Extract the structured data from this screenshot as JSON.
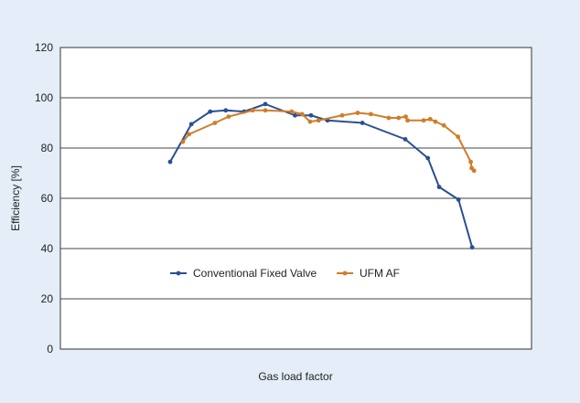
{
  "chart_data": {
    "type": "line",
    "title": "",
    "xlabel": "Gas load factor",
    "ylabel": "Efficiency [%]",
    "xlim": [
      0,
      1
    ],
    "ylim": [
      0,
      120
    ],
    "yticks": [
      0,
      20,
      40,
      60,
      80,
      100,
      120
    ],
    "grid": "horizontal",
    "legend_placement": "inside-left-lower",
    "series": [
      {
        "name": "Conventional Fixed Valve",
        "color": "#2a4f96",
        "x": [
          0.233,
          0.278,
          0.318,
          0.351,
          0.39,
          0.435,
          0.498,
          0.532,
          0.567,
          0.641,
          0.732,
          0.78,
          0.804,
          0.845,
          0.874
        ],
        "y": [
          74.5,
          89.5,
          94.5,
          95.0,
          94.5,
          97.5,
          93.0,
          93.0,
          91.0,
          90.0,
          83.5,
          76.0,
          64.5,
          59.5,
          40.5
        ]
      },
      {
        "name": "UFM AF",
        "color": "#d07d28",
        "x": [
          0.26,
          0.273,
          0.328,
          0.357,
          0.408,
          0.435,
          0.491,
          0.513,
          0.53,
          0.548,
          0.598,
          0.631,
          0.659,
          0.697,
          0.718,
          0.733,
          0.737,
          0.771,
          0.785,
          0.796,
          0.814,
          0.844,
          0.871,
          0.873,
          0.878
        ],
        "y": [
          82.5,
          85.5,
          90.0,
          92.5,
          95.0,
          95.0,
          94.5,
          93.5,
          90.5,
          91.0,
          93.0,
          94.0,
          93.5,
          92.0,
          92.0,
          92.5,
          91.0,
          91.0,
          91.5,
          90.5,
          89.0,
          84.5,
          74.5,
          72.0,
          71.0
        ]
      }
    ]
  }
}
